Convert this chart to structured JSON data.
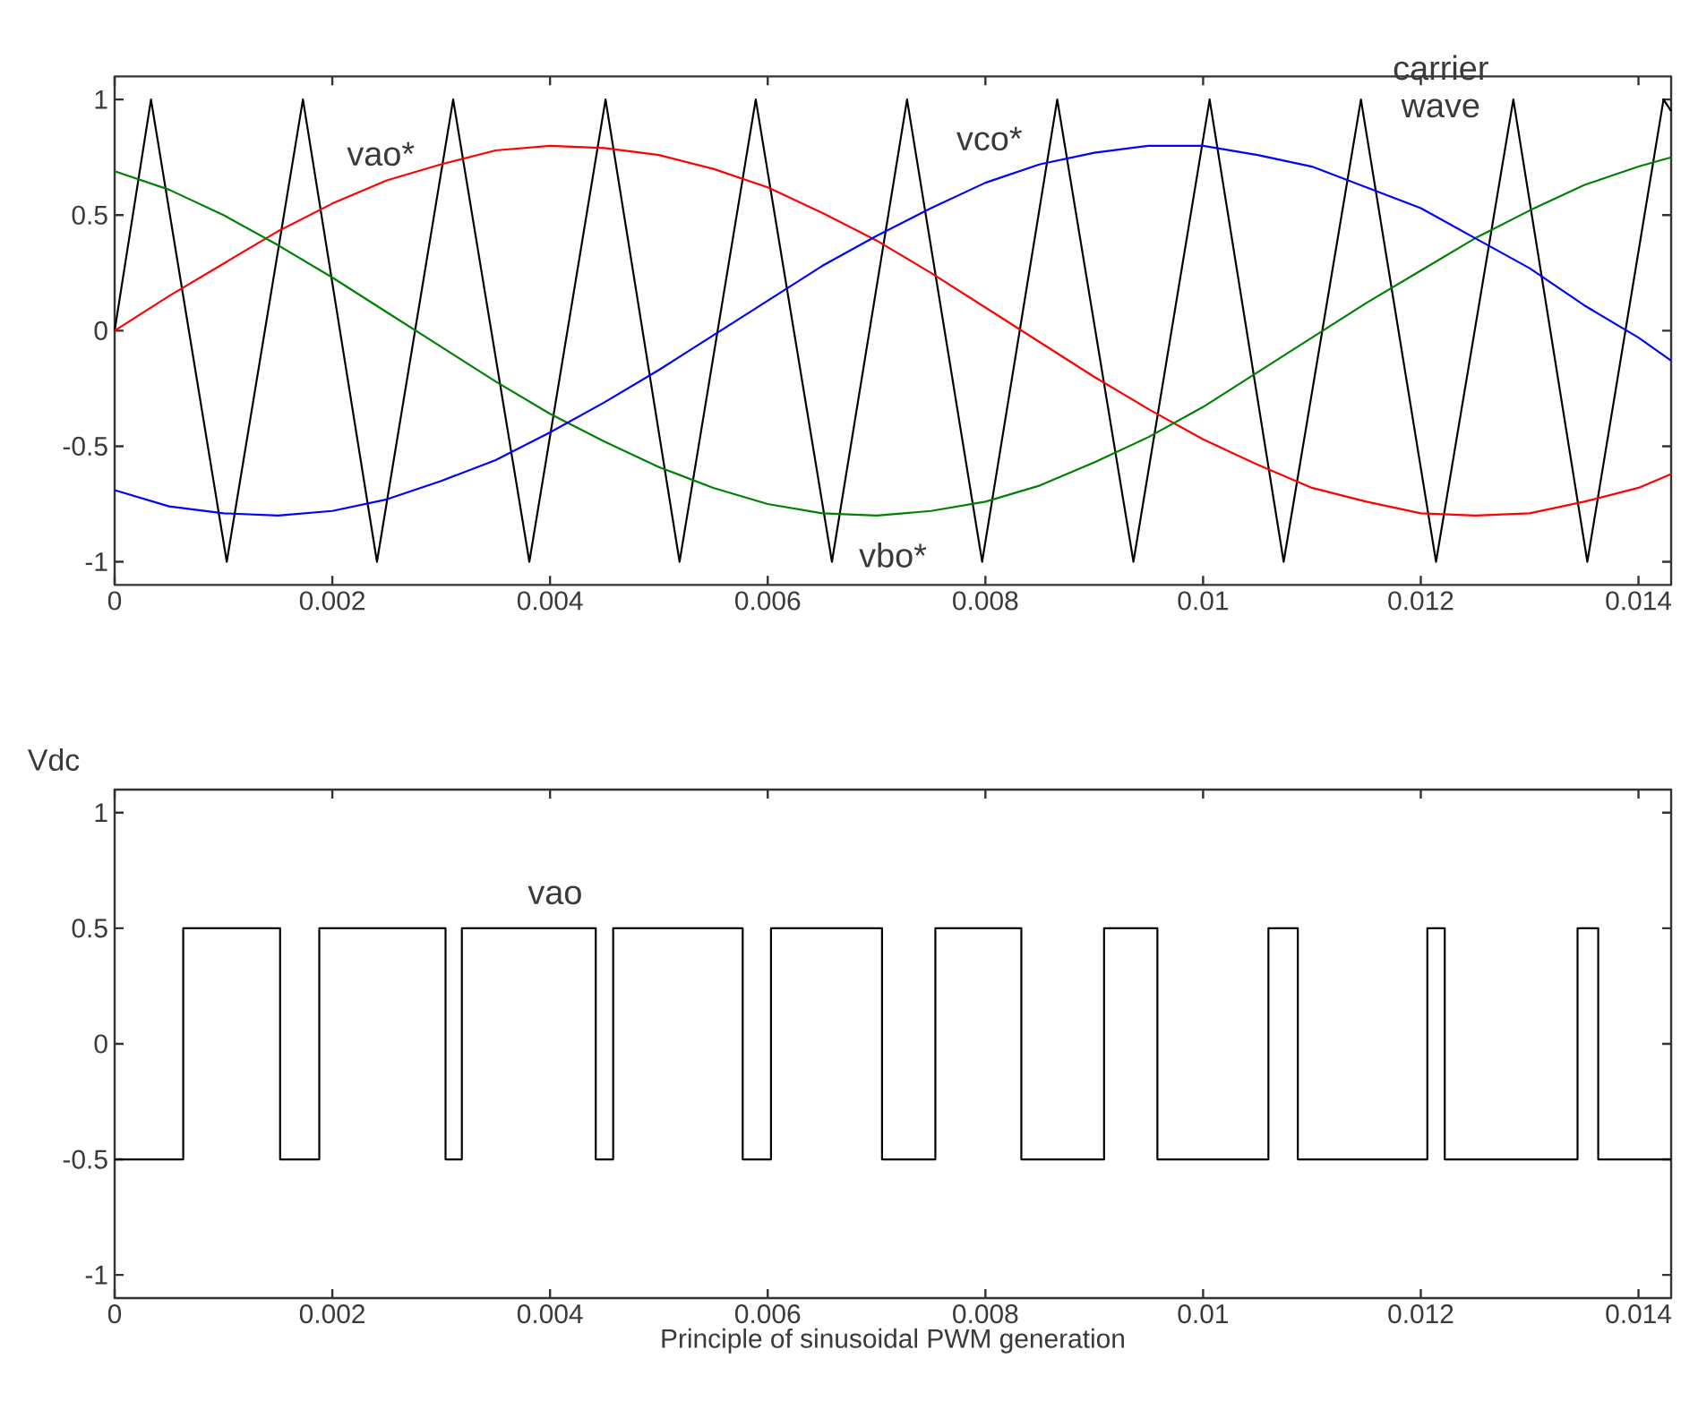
{
  "chart_data": [
    {
      "type": "line",
      "xlim": [
        0,
        0.0143
      ],
      "ylim": [
        -1.1,
        1.1
      ],
      "xticks": [
        0,
        0.002,
        0.004,
        0.006,
        0.008,
        0.01,
        0.012,
        0.014
      ],
      "yticks": [
        -1,
        -0.5,
        0,
        0.5,
        1
      ],
      "series": [
        {
          "color": "#000000",
          "x": [
            0,
            0.000334,
            0.00103,
            0.00173,
            0.00241,
            0.00311,
            0.00381,
            0.00451,
            0.00519,
            0.00589,
            0.00659,
            0.00728,
            0.00797,
            0.00866,
            0.00936,
            0.01006,
            0.01074,
            0.01145,
            0.01214,
            0.01285,
            0.01353,
            0.01423,
            0.0143
          ],
          "values": [
            0,
            1,
            -1,
            1,
            -1,
            1,
            -1,
            1,
            -1,
            1,
            -1,
            1,
            -1,
            1,
            -1,
            1,
            -1,
            1,
            -1,
            1,
            -1,
            1,
            0.95
          ]
        },
        {
          "color": "#ff0000",
          "x": [
            0,
            0.0005,
            0.001,
            0.0015,
            0.002,
            0.0025,
            0.003,
            0.0035,
            0.004,
            0.0045,
            0.005,
            0.0055,
            0.006,
            0.0065,
            0.007,
            0.0075,
            0.008,
            0.0085,
            0.009,
            0.0095,
            0.01,
            0.0105,
            0.011,
            0.0115,
            0.012,
            0.0125,
            0.013,
            0.0135,
            0.014,
            0.0143
          ],
          "values": [
            0,
            0.15,
            0.29,
            0.43,
            0.55,
            0.65,
            0.72,
            0.78,
            0.8,
            0.79,
            0.76,
            0.7,
            0.62,
            0.51,
            0.39,
            0.25,
            0.1,
            -0.05,
            -0.2,
            -0.34,
            -0.47,
            -0.58,
            -0.68,
            -0.74,
            -0.79,
            -0.8,
            -0.79,
            -0.74,
            -0.68,
            -0.62
          ]
        },
        {
          "color": "#008000",
          "x": [
            0,
            0.0005,
            0.001,
            0.0015,
            0.002,
            0.0025,
            0.003,
            0.0035,
            0.004,
            0.0045,
            0.005,
            0.0055,
            0.006,
            0.0065,
            0.007,
            0.0075,
            0.008,
            0.0085,
            0.009,
            0.0095,
            0.01,
            0.0105,
            0.011,
            0.0115,
            0.012,
            0.0125,
            0.013,
            0.0135,
            0.014,
            0.0143
          ],
          "values": [
            0.69,
            0.61,
            0.5,
            0.37,
            0.23,
            0.08,
            -0.07,
            -0.22,
            -0.36,
            -0.48,
            -0.59,
            -0.68,
            -0.75,
            -0.79,
            -0.8,
            -0.78,
            -0.74,
            -0.67,
            -0.57,
            -0.46,
            -0.33,
            -0.18,
            -0.03,
            0.12,
            0.26,
            0.4,
            0.52,
            0.63,
            0.71,
            0.75
          ]
        },
        {
          "color": "#0000ff",
          "x": [
            0,
            0.0005,
            0.001,
            0.0015,
            0.002,
            0.0025,
            0.003,
            0.0035,
            0.004,
            0.0045,
            0.005,
            0.0055,
            0.006,
            0.0065,
            0.007,
            0.0075,
            0.008,
            0.0085,
            0.009,
            0.0095,
            0.01,
            0.0105,
            0.011,
            0.0115,
            0.012,
            0.0125,
            0.013,
            0.0135,
            0.014,
            0.0143
          ],
          "values": [
            -0.69,
            -0.76,
            -0.79,
            -0.8,
            -0.78,
            -0.73,
            -0.65,
            -0.56,
            -0.44,
            -0.31,
            -0.17,
            -0.02,
            0.13,
            0.28,
            0.41,
            0.53,
            0.64,
            0.72,
            0.77,
            0.8,
            0.8,
            0.76,
            0.71,
            0.62,
            0.53,
            0.4,
            0.27,
            0.11,
            -0.03,
            -0.13
          ]
        }
      ],
      "annotations": [
        "vao*",
        "vco*",
        "vbo*",
        "carrier wave"
      ]
    },
    {
      "type": "step",
      "xlim": [
        0,
        0.0143
      ],
      "ylim": [
        -1.1,
        1.1
      ],
      "xticks": [
        0,
        0.002,
        0.004,
        0.006,
        0.008,
        0.01,
        0.012,
        0.014
      ],
      "yticks": [
        -1,
        -0.5,
        0,
        0.5,
        1
      ],
      "xlabel": "Principle of sinusoidal PWM generation",
      "ylabel": "Vdc",
      "series": [
        {
          "color": "#000000",
          "x": [
            0,
            0.00063,
            0.00152,
            0.00188,
            0.00304,
            0.00319,
            0.00442,
            0.00458,
            0.00577,
            0.00603,
            0.00705,
            0.00754,
            0.00833,
            0.00909,
            0.00958,
            0.0106,
            0.01087,
            0.01206,
            0.01222,
            0.01344,
            0.01363,
            0.0143
          ],
          "values": [
            -0.5,
            0.5,
            -0.5,
            0.5,
            -0.5,
            0.5,
            -0.5,
            0.5,
            -0.5,
            0.5,
            -0.5,
            0.5,
            -0.5,
            0.5,
            -0.5,
            0.5,
            -0.5,
            0.5,
            -0.5,
            0.5,
            -0.5,
            -0.5
          ]
        }
      ],
      "annotations": [
        "vao"
      ]
    }
  ]
}
